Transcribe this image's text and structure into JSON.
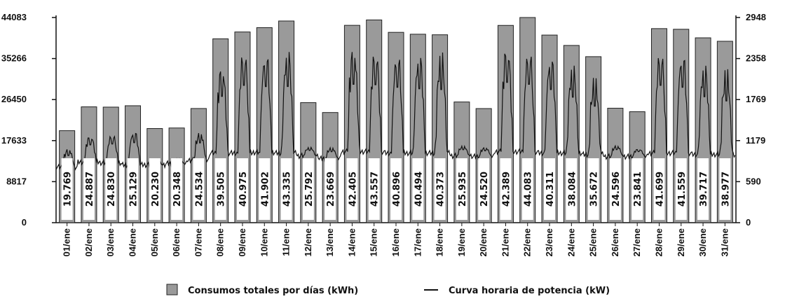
{
  "chart_data": {
    "type": "bar",
    "categories": [
      "01/ene",
      "02/ene",
      "03/ene",
      "04/ene",
      "05/ene",
      "06/ene",
      "07/ene",
      "08/ene",
      "09/ene",
      "10/ene",
      "11/ene",
      "12/ene",
      "13/ene",
      "14/ene",
      "15/ene",
      "16/ene",
      "17/ene",
      "18/ene",
      "19/ene",
      "20/ene",
      "21/ene",
      "22/ene",
      "23/ene",
      "24/ene",
      "25/ene",
      "26/ene",
      "27/ene",
      "28/ene",
      "29/ene",
      "30/ene",
      "31/ene"
    ],
    "value_labels": [
      "19.769",
      "24.887",
      "24.830",
      "25.129",
      "20.230",
      "20.348",
      "24.534",
      "39.505",
      "40.975",
      "41.902",
      "43.335",
      "25.792",
      "23.669",
      "42.405",
      "43.557",
      "40.896",
      "40.494",
      "40.373",
      "25.935",
      "24.520",
      "42.389",
      "44.083",
      "40.311",
      "38.084",
      "35.672",
      "24.596",
      "23.841",
      "41.699",
      "41.559",
      "39.717",
      "38.977"
    ],
    "series": [
      {
        "name": "Consumos totales por días (kWh)",
        "axis": "left",
        "values": [
          19769,
          24887,
          24830,
          25129,
          20230,
          20348,
          24534,
          39505,
          40975,
          41902,
          43335,
          25792,
          23669,
          42405,
          43557,
          40896,
          40494,
          40373,
          25935,
          24520,
          42389,
          44083,
          40311,
          38084,
          35672,
          24596,
          23841,
          41699,
          41559,
          39717,
          38977
        ]
      },
      {
        "name": "Curva horaria de potencia (kW)",
        "axis": "right",
        "type": "line",
        "day_low": [
          800,
          870,
          860,
          830,
          830,
          850,
          900,
          1000,
          1000,
          1010,
          1000,
          960,
          920,
          1020,
          1020,
          1000,
          1000,
          1000,
          960,
          950,
          1020,
          1020,
          1000,
          1000,
          980,
          950,
          950,
          1000,
          1000,
          980,
          980
        ],
        "day_peak": [
          1100,
          1320,
          1350,
          1410,
          930,
          930,
          1350,
          2480,
          2770,
          2730,
          2740,
          1100,
          1100,
          2780,
          2770,
          2720,
          2680,
          2660,
          1120,
          1100,
          2830,
          2780,
          2660,
          2460,
          2240,
          1130,
          1080,
          2770,
          2720,
          2490,
          2380
        ]
      }
    ],
    "y_left": {
      "ticks": [
        "0",
        "8817",
        "17633",
        "26450",
        "35266",
        "44083"
      ],
      "range": [
        0,
        44083
      ]
    },
    "y_right": {
      "ticks": [
        "0",
        "590",
        "1179",
        "1769",
        "2358",
        "2948"
      ],
      "range": [
        0,
        2948
      ]
    },
    "colors": {
      "bar": "#9a9a9a",
      "bar_stroke": "#222222",
      "line": "#111111",
      "label_box": "#ffffff"
    },
    "grid": false,
    "legend_position": "bottom-center"
  }
}
